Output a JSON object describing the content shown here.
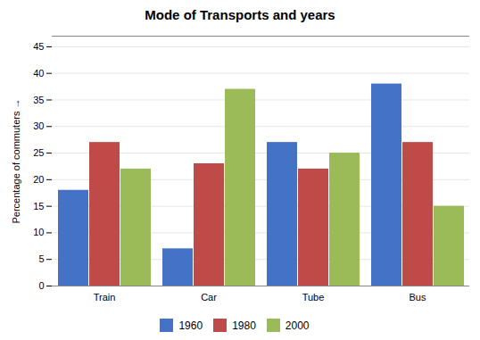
{
  "chart_data": {
    "type": "bar",
    "title": "Mode of Transports and years",
    "categories": [
      "Train",
      "Car",
      "Tube",
      "Bus"
    ],
    "series": [
      {
        "name": "1960",
        "color": "#4472C4",
        "values": [
          18,
          7,
          27,
          38
        ]
      },
      {
        "name": "1980",
        "color": "#BE4B48",
        "values": [
          27,
          23,
          22,
          27
        ]
      },
      {
        "name": "2000",
        "color": "#9BBB59",
        "values": [
          22,
          37,
          25,
          15
        ]
      }
    ],
    "ylabel": "Percentage of commuters",
    "ylim": [
      0,
      47
    ],
    "yticks": [
      0,
      5,
      10,
      15,
      20,
      25,
      30,
      35,
      40,
      45
    ],
    "grid": true,
    "legend": "bottom"
  }
}
